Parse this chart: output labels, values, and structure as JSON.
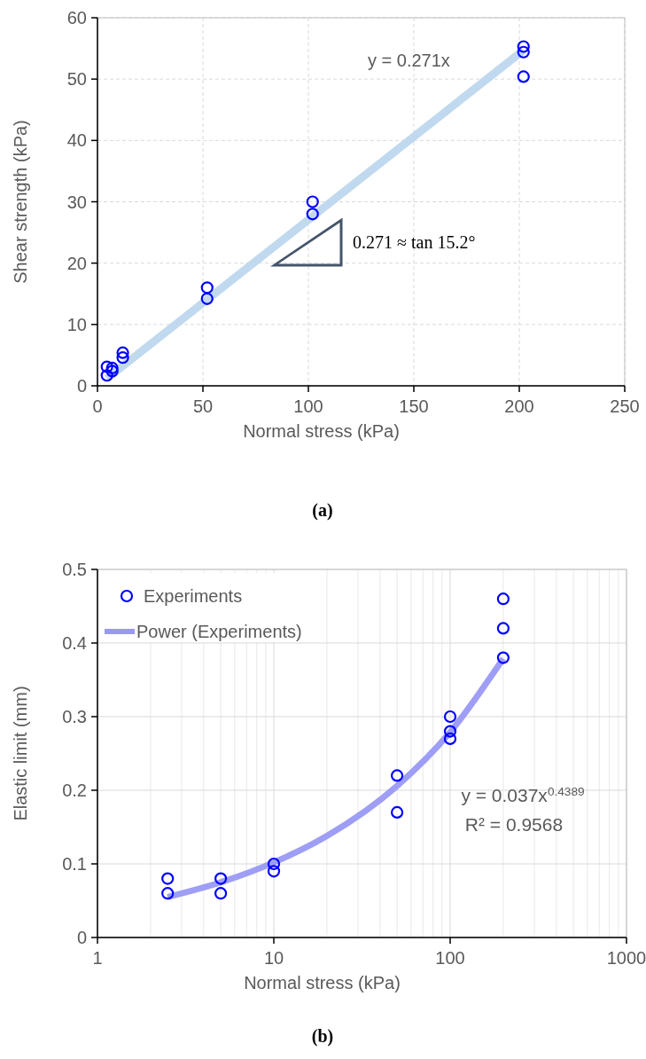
{
  "chart_data": [
    {
      "type": "scatter",
      "xlabel": "Normal stress (kPa)",
      "ylabel": "Shear strength (kPa)",
      "xlim": [
        0,
        250
      ],
      "xticks": [
        0,
        50,
        100,
        150,
        200,
        250
      ],
      "ylim": [
        0,
        60
      ],
      "yticks": [
        0,
        10,
        20,
        30,
        40,
        50,
        60
      ],
      "grid": true,
      "legend": false,
      "series": [
        {
          "color": "#0000ff",
          "marker": "circle",
          "x": [
            4.5,
            4.5,
            7,
            7,
            12,
            12,
            52,
            52,
            102,
            102,
            202,
            202,
            202
          ],
          "values": [
            3.1,
            1.7,
            2.9,
            2.4,
            5.4,
            4.6,
            16.0,
            14.2,
            30.0,
            28.0,
            55.3,
            54.4,
            50.4
          ]
        },
        {
          "type": "line",
          "marker": "none",
          "color": "#bdd7ee",
          "x": [
            4.5,
            202
          ],
          "values": [
            1.2,
            54.7
          ]
        }
      ],
      "annotations": [
        "y = 0.271x",
        "0.271 ≈ tan 15.2°",
        "(a)"
      ]
    },
    {
      "type": "scatter",
      "xlabel": "Normal stress (kPa)",
      "ylabel": "Elastic limit (mm)",
      "log": "x",
      "xlim": [
        1,
        1000
      ],
      "xticks": [
        1,
        10,
        100,
        1000
      ],
      "ylim": [
        0,
        0.5
      ],
      "yticks": [
        0,
        0.1,
        0.2,
        0.3,
        0.4,
        0.5
      ],
      "grid": true,
      "legend": "top left",
      "series": [
        {
          "name": "Experiments",
          "marker": "circle",
          "color": "#0000ff",
          "x": [
            2.5,
            2.5,
            5,
            5,
            10,
            10,
            50,
            50,
            100,
            100,
            100,
            200,
            200,
            200
          ],
          "values": [
            0.08,
            0.06,
            0.08,
            0.06,
            0.1,
            0.09,
            0.22,
            0.17,
            0.3,
            0.28,
            0.27,
            0.46,
            0.42,
            0.38
          ]
        },
        {
          "name": "Power (Experiments)",
          "type": "line",
          "marker": "none",
          "color": "#9999f5",
          "x": [
            2.5,
            5,
            10,
            20,
            50,
            100,
            200
          ],
          "values": [
            0.055,
            0.075,
            0.102,
            0.138,
            0.206,
            0.279,
            0.379
          ]
        }
      ],
      "annotations": [
        "y = 0.037x$^{0.4389}$",
        "R² = 0.9568",
        "(b)"
      ]
    }
  ]
}
